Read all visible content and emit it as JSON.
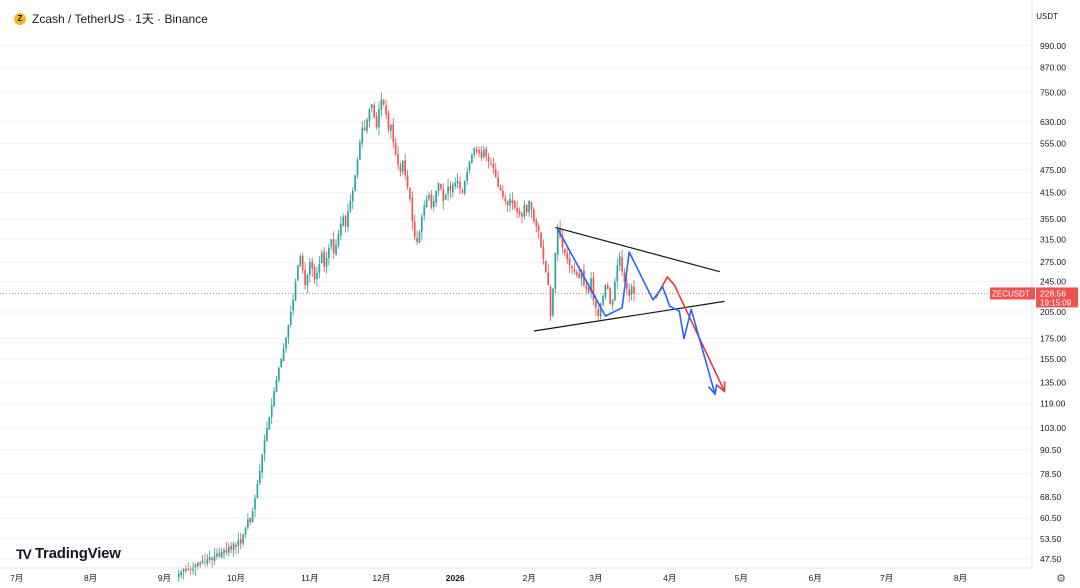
{
  "header": {
    "coin_icon": "zcash-coin-icon",
    "title": "Zcash / TetherUS · 1天 · Binance"
  },
  "currency": "USDT",
  "brand": "TradingView",
  "settings_icon": "gear-icon",
  "colors": {
    "up": "#26a69a",
    "down": "#ef5350",
    "blue_arrow": "#2962ff",
    "red_arrow": "#e53935",
    "trendline": "#131722"
  },
  "chart_data": {
    "type": "candlestick",
    "scale": "log",
    "ylim": [
      45,
      1100
    ],
    "y_ticks": [
      990,
      870,
      750,
      630,
      555,
      475,
      415,
      355,
      315,
      275,
      245,
      205,
      175,
      155,
      135,
      119,
      103,
      90.5,
      78.5,
      68.5,
      60.5,
      53.5,
      47.5
    ],
    "y_tick_labels": [
      "990.00",
      "870.00",
      "750.00",
      "630.00",
      "555.00",
      "475.00",
      "415.00",
      "355.00",
      "315.00",
      "275.00",
      "245.00",
      "205.00",
      "175.00",
      "155.00",
      "135.00",
      "119.00",
      "103.00",
      "90.50",
      "78.50",
      "68.50",
      "60.50",
      "53.50",
      "47.50"
    ],
    "x_range": [
      "2025-06-24",
      "2026-08-31"
    ],
    "x_ticks": [
      {
        "date": "2025-07-01",
        "label": "7月"
      },
      {
        "date": "2025-08-01",
        "label": "8月"
      },
      {
        "date": "2025-09-01",
        "label": "9月"
      },
      {
        "date": "2025-10-01",
        "label": "10月"
      },
      {
        "date": "2025-11-01",
        "label": "11月"
      },
      {
        "date": "2025-12-01",
        "label": "12月"
      },
      {
        "date": "2026-01-01",
        "label": "2026"
      },
      {
        "date": "2026-02-01",
        "label": "2月"
      },
      {
        "date": "2026-03-01",
        "label": "3月"
      },
      {
        "date": "2026-04-01",
        "label": "4月"
      },
      {
        "date": "2026-05-01",
        "label": "5月"
      },
      {
        "date": "2026-06-01",
        "label": "6月"
      },
      {
        "date": "2026-07-01",
        "label": "7月"
      },
      {
        "date": "2026-08-01",
        "label": "8月"
      }
    ],
    "first_date": "2025-09-07",
    "last_date": "2026-03-24",
    "closes": [
      43.5,
      44,
      44.8,
      44.2,
      45,
      44.6,
      45.3,
      46,
      45.5,
      46.5,
      47,
      46.4,
      47.5,
      48,
      47.2,
      48.5,
      49,
      48.2,
      49.5,
      50,
      49.3,
      51,
      50.2,
      52,
      51,
      53,
      52,
      55,
      57,
      60,
      59,
      63,
      68,
      74,
      80,
      88,
      96,
      103,
      110,
      118,
      128,
      137,
      147,
      155,
      165,
      176,
      190,
      205,
      220,
      245,
      270,
      285,
      262,
      240,
      255,
      275,
      265,
      248,
      258,
      272,
      290,
      268,
      282,
      300,
      315,
      290,
      305,
      325,
      345,
      360,
      340,
      372,
      395,
      420,
      460,
      505,
      560,
      610,
      600,
      640,
      680,
      700,
      650,
      610,
      680,
      720,
      700,
      660,
      600,
      620,
      560,
      520,
      490,
      470,
      500,
      460,
      430,
      400,
      350,
      320,
      310,
      330,
      360,
      385,
      400,
      410,
      380,
      395,
      420,
      440,
      425,
      395,
      410,
      430,
      420,
      435,
      440,
      445,
      425,
      415,
      445,
      470,
      500,
      520,
      540,
      530,
      525,
      510,
      535,
      515,
      500,
      495,
      480,
      455,
      430,
      420,
      405,
      395,
      385,
      400,
      390,
      380,
      370,
      365,
      360,
      385,
      370,
      395,
      375,
      350,
      340,
      330,
      300,
      280,
      260,
      240,
      200,
      235,
      290,
      335,
      320,
      300,
      290,
      280,
      270,
      265,
      260,
      255,
      250,
      260,
      240,
      235,
      230,
      250,
      220,
      210,
      200,
      215,
      225,
      240,
      235,
      215,
      220,
      245,
      270,
      285,
      260,
      245,
      235,
      225,
      238,
      228.56
    ],
    "last_price": "228.56",
    "symbol_label": "ZECUSDT",
    "countdown": "19:15:09",
    "drawings": {
      "triangle_upper": [
        [
          "2026-02-12",
          338
        ],
        [
          "2026-04-22",
          260
        ]
      ],
      "triangle_lower": [
        [
          "2026-02-03",
          183
        ],
        [
          "2026-04-24",
          218
        ]
      ],
      "blue_zigzag": [
        [
          "2026-02-13",
          335
        ],
        [
          "2026-03-05",
          200
        ],
        [
          "2026-03-12",
          210
        ],
        [
          "2026-03-15",
          292
        ],
        [
          "2026-03-25",
          220
        ],
        [
          "2026-03-29",
          238
        ],
        [
          "2026-04-01",
          212
        ],
        [
          "2026-04-05",
          206
        ],
        [
          "2026-04-07",
          175
        ],
        [
          "2026-04-10",
          208
        ],
        [
          "2026-04-20",
          126
        ]
      ],
      "red_path": [
        [
          "2026-03-26",
          222
        ],
        [
          "2026-03-31",
          252
        ],
        [
          "2026-04-03",
          240
        ],
        [
          "2026-04-24",
          128
        ]
      ]
    }
  }
}
